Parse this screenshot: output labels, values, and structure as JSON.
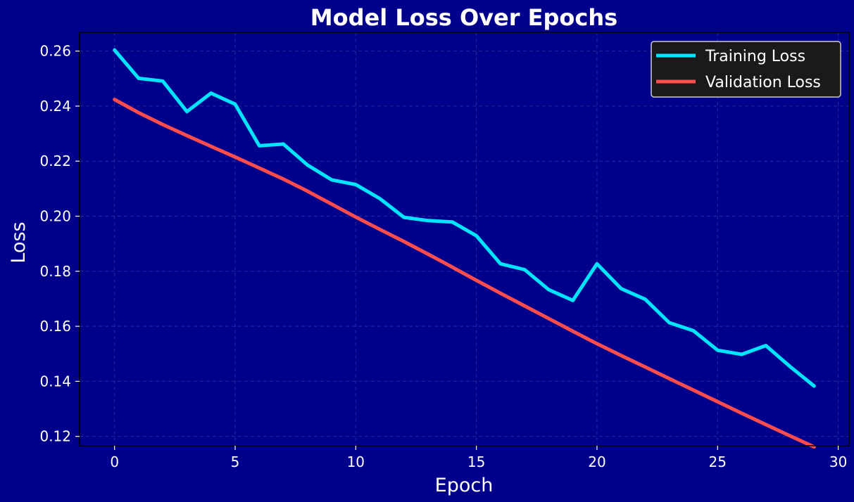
{
  "chart_data": {
    "type": "line",
    "title": "Model Loss Over Epochs",
    "xlabel": "Epoch",
    "ylabel": "Loss",
    "xlim": [
      -1.45,
      30.45
    ],
    "ylim": [
      0.1166,
      0.2668
    ],
    "xticks": [
      0,
      5,
      10,
      15,
      20,
      25,
      30
    ],
    "yticks": [
      0.12,
      0.14,
      0.16,
      0.18,
      0.2,
      0.22,
      0.24,
      0.26
    ],
    "grid": true,
    "legend_position": "top-right",
    "x": [
      0,
      1,
      2,
      3,
      4,
      5,
      6,
      7,
      8,
      9,
      10,
      11,
      12,
      13,
      14,
      15,
      16,
      17,
      18,
      19,
      20,
      21,
      22,
      23,
      24,
      25,
      26,
      27,
      28,
      29
    ],
    "series": [
      {
        "name": "Training Loss",
        "color": "#00e5ff",
        "values": [
          0.2604,
          0.2501,
          0.2491,
          0.238,
          0.2447,
          0.2407,
          0.2256,
          0.2262,
          0.2186,
          0.2132,
          0.2115,
          0.2064,
          0.1996,
          0.1984,
          0.1979,
          0.1929,
          0.1827,
          0.1806,
          0.1733,
          0.1694,
          0.1827,
          0.1737,
          0.1698,
          0.1613,
          0.1584,
          0.1513,
          0.1498,
          0.153,
          0.1454,
          0.1383
        ]
      },
      {
        "name": "Validation Loss",
        "color": "#ff4d4d",
        "values": [
          0.2424,
          0.2376,
          0.2333,
          0.2293,
          0.2254,
          0.2215,
          0.2175,
          0.2135,
          0.2091,
          0.2044,
          0.1997,
          0.1952,
          0.1908,
          0.1862,
          0.1815,
          0.1767,
          0.172,
          0.1674,
          0.1628,
          0.1582,
          0.1537,
          0.1494,
          0.1452,
          0.141,
          0.1368,
          0.1326,
          0.1284,
          0.1243,
          0.1202,
          0.1162
        ]
      }
    ]
  }
}
